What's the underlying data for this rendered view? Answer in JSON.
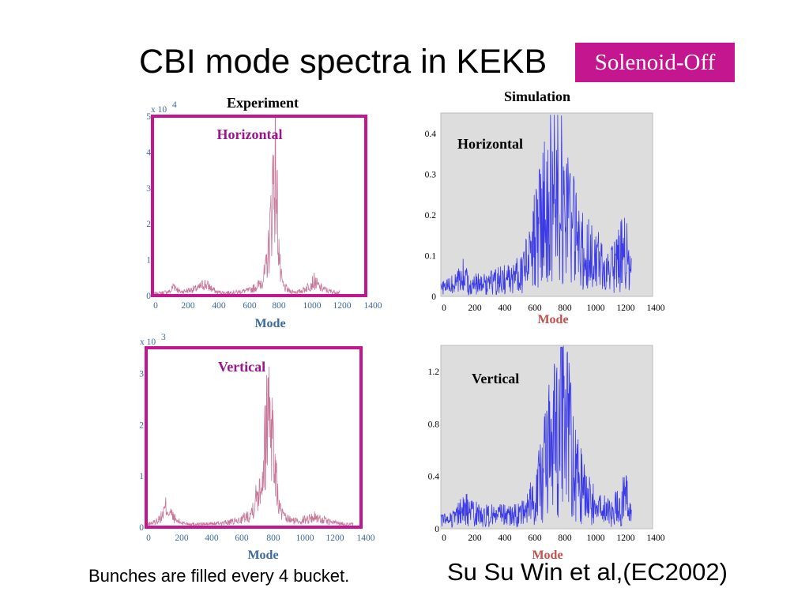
{
  "slide": {
    "title": "CBI mode spectra in KEKB",
    "badge": "Solenoid-Off",
    "experiment_header": "Experiment",
    "simulation_header": "Simulation",
    "footnote": "Bunches are filled every 4 bucket.",
    "citation": "Su Su Win et al,(EC2002)"
  },
  "colors": {
    "badge": "#c4168e",
    "frame_magenta": "#c4168e",
    "experiment_line": "#c8789a",
    "simulation_line": "#3a3ae6",
    "simulation_bg": "#dddddd",
    "axis_tick_blue": "#3a6aa0",
    "mode_label_blue": "#3a6aa0",
    "mode_label_red": "#c0504d",
    "panel_label_magenta": "#9a168e"
  },
  "chart_data": [
    {
      "id": "exp-horizontal",
      "type": "line",
      "panel_label": "Horizontal",
      "xlabel": "Mode",
      "ylabel": "",
      "exponent_base": "x 10",
      "exponent_power": "4",
      "xlim": [
        0,
        1400
      ],
      "ylim": [
        0,
        5
      ],
      "xticks": [
        "0",
        "200",
        "400",
        "600",
        "800",
        "1000",
        "1200",
        "1400"
      ],
      "yticks": [
        "0",
        "1",
        "2",
        "3",
        "4",
        "5"
      ],
      "series": [
        {
          "x": [
            0,
            60,
            120,
            140,
            180,
            240,
            300,
            340,
            380,
            420,
            480,
            560,
            640,
            700,
            740,
            760,
            780,
            790,
            800,
            810,
            820,
            830,
            840,
            860,
            900,
            960,
            1000,
            1060,
            1100,
            1160,
            1240,
            1340
          ],
          "y": [
            0.05,
            0.08,
            0.12,
            0.3,
            0.1,
            0.15,
            0.2,
            0.33,
            0.22,
            0.1,
            0.08,
            0.1,
            0.15,
            0.3,
            0.6,
            1.2,
            2.2,
            3.2,
            3.65,
            3.3,
            2.4,
            1.3,
            0.55,
            0.25,
            0.12,
            0.1,
            0.18,
            0.4,
            0.22,
            0.12,
            0.08,
            0.05
          ]
        }
      ]
    },
    {
      "id": "exp-vertical",
      "type": "line",
      "panel_label": "Vertical",
      "xlabel": "Mode",
      "ylabel": "",
      "exponent_base": "x 10",
      "exponent_power": "3",
      "xlim": [
        0,
        1400
      ],
      "ylim": [
        0,
        3.5
      ],
      "xticks": [
        "0",
        "200",
        "400",
        "600",
        "800",
        "1000",
        "1200",
        "1400"
      ],
      "yticks": [
        "0",
        "1",
        "2",
        "3"
      ],
      "series": [
        {
          "x": [
            0,
            60,
            100,
            130,
            150,
            170,
            200,
            240,
            300,
            400,
            500,
            600,
            680,
            720,
            760,
            780,
            800,
            810,
            820,
            830,
            850,
            870,
            900,
            960,
            1040,
            1100,
            1140,
            1200,
            1300,
            1400
          ],
          "y": [
            0.05,
            0.1,
            0.2,
            0.4,
            0.3,
            0.22,
            0.12,
            0.08,
            0.06,
            0.06,
            0.08,
            0.12,
            0.25,
            0.6,
            1.1,
            1.8,
            2.7,
            2.3,
            2.0,
            1.5,
            0.8,
            0.35,
            0.18,
            0.12,
            0.15,
            0.2,
            0.15,
            0.1,
            0.06,
            0.05
          ]
        }
      ]
    },
    {
      "id": "sim-horizontal",
      "type": "line",
      "panel_label": "Horizontal",
      "xlabel": "Mode",
      "ylabel": "",
      "xlim": [
        0,
        1400
      ],
      "ylim": [
        0,
        0.45
      ],
      "xticks": [
        "0",
        "200",
        "400",
        "600",
        "800",
        "1000",
        "1200",
        "1400"
      ],
      "yticks": [
        "0",
        "0.1",
        "0.2",
        "0.3",
        "0.4"
      ],
      "series": [
        {
          "x": [
            0,
            100,
            150,
            200,
            300,
            400,
            500,
            560,
            600,
            640,
            680,
            720,
            750,
            780,
            800,
            820,
            860,
            900,
            960,
            1000,
            1060,
            1120,
            1180,
            1220,
            1240,
            1280
          ],
          "y": [
            0.02,
            0.03,
            0.05,
            0.03,
            0.03,
            0.04,
            0.05,
            0.08,
            0.12,
            0.16,
            0.22,
            0.27,
            0.3,
            0.4,
            0.28,
            0.25,
            0.18,
            0.13,
            0.1,
            0.1,
            0.08,
            0.06,
            0.09,
            0.12,
            0.07,
            0.03
          ]
        }
      ]
    },
    {
      "id": "sim-vertical",
      "type": "line",
      "panel_label": "Vertical",
      "xlabel": "Mode",
      "ylabel": "",
      "xlim": [
        0,
        1400
      ],
      "ylim": [
        0,
        1.4
      ],
      "xticks": [
        "0",
        "200",
        "400",
        "600",
        "800",
        "1000",
        "1200",
        "1400"
      ],
      "yticks": [
        "0",
        "0.4",
        "0.8",
        "1.2"
      ],
      "series": [
        {
          "x": [
            0,
            100,
            160,
            200,
            300,
            400,
            500,
            560,
            600,
            640,
            680,
            720,
            760,
            780,
            800,
            820,
            860,
            900,
            960,
            1000,
            1060,
            1120,
            1180,
            1220,
            1250,
            1280
          ],
          "y": [
            0.06,
            0.09,
            0.15,
            0.12,
            0.1,
            0.1,
            0.1,
            0.14,
            0.2,
            0.3,
            0.45,
            0.6,
            0.75,
            0.9,
            1.3,
            0.85,
            0.6,
            0.4,
            0.25,
            0.2,
            0.15,
            0.12,
            0.18,
            0.24,
            0.14,
            0.06
          ]
        }
      ]
    }
  ]
}
